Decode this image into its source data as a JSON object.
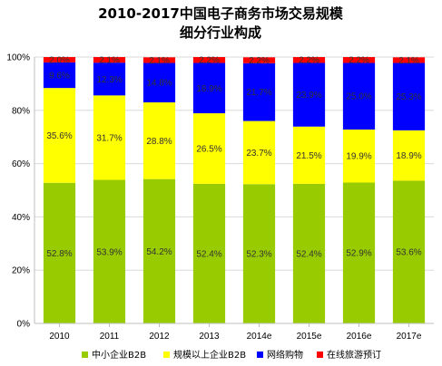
{
  "chart_data": {
    "type": "bar",
    "stacked": true,
    "title": "2010-2017中国电子商务市场交易规模",
    "subtitle": "细分行业构成",
    "categories": [
      "2010",
      "2011",
      "2012",
      "2013",
      "2014e",
      "2015e",
      "2016e",
      "2017e"
    ],
    "ylim": [
      0,
      100
    ],
    "y_ticks": [
      "0%",
      "20%",
      "40%",
      "60%",
      "80%",
      "100%"
    ],
    "grid": true,
    "legend_position": "bottom",
    "series": [
      {
        "name": "中小企业B2B",
        "color": "#99CC00",
        "values": [
          52.8,
          53.9,
          54.2,
          52.4,
          52.3,
          52.4,
          52.9,
          53.6
        ],
        "labels": [
          "52.8%",
          "53.9%",
          "54.2%",
          "52.4%",
          "52.3%",
          "52.4%",
          "52.9%",
          "53.6%"
        ]
      },
      {
        "name": "规模以上企业B2B",
        "color": "#FFFF00",
        "values": [
          35.6,
          31.7,
          28.8,
          26.5,
          23.7,
          21.5,
          19.9,
          18.9
        ],
        "labels": [
          "35.6%",
          "31.7%",
          "28.8%",
          "26.5%",
          "23.7%",
          "21.5%",
          "19.9%",
          "18.9%"
        ]
      },
      {
        "name": "网络购物",
        "color": "#0000FF",
        "values": [
          9.6,
          12.3,
          14.8,
          18.9,
          21.7,
          23.9,
          25.0,
          25.3
        ],
        "labels": [
          "9.6%",
          "12.3%",
          "14.8%",
          "18.9%",
          "21.7%",
          "23.9%",
          "25.0%",
          "25.3%"
        ]
      },
      {
        "name": "在线旅游预订",
        "color": "#FF0000",
        "values": [
          2.0,
          2.1,
          2.1,
          2.2,
          2.2,
          2.2,
          2.2,
          2.1
        ],
        "labels": [
          "2.0%",
          "2.1%",
          "2.1%",
          "2.2%",
          "2.2%",
          "2.2%",
          "2.2%",
          "2.1%"
        ]
      }
    ]
  }
}
